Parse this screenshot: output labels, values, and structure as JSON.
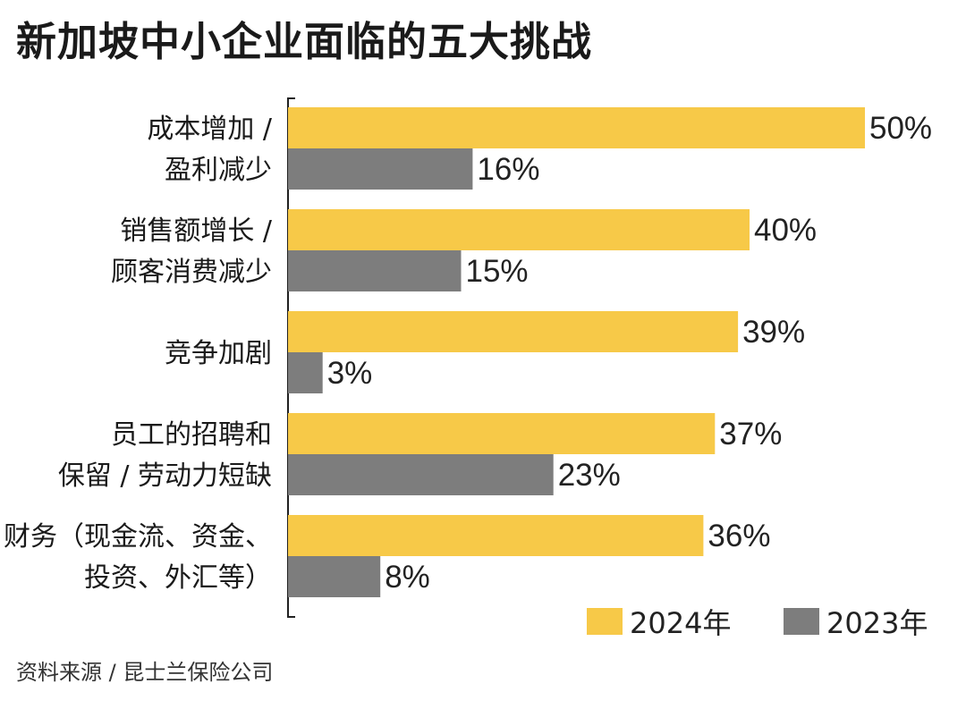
{
  "title": "新加坡中小企业面临的五大挑战",
  "source": "资料来源 / 昆士兰保险公司",
  "chart_data": {
    "type": "bar",
    "orientation": "horizontal",
    "categories": [
      [
        "成本增加 /",
        "盈利减少"
      ],
      [
        "销售额增长 /",
        "顾客消费减少"
      ],
      [
        "竞争加剧"
      ],
      [
        "员工的招聘和",
        "保留 / 劳动力短缺"
      ],
      [
        "财务（现金流、资金、",
        "投资、外汇等）"
      ]
    ],
    "series": [
      {
        "name": "2024年",
        "color": "#f7c948",
        "values": [
          50,
          40,
          39,
          37,
          36
        ]
      },
      {
        "name": "2023年",
        "color": "#7d7d7d",
        "values": [
          16,
          15,
          3,
          23,
          8
        ]
      }
    ],
    "value_suffix": "%",
    "xlim": [
      0,
      50
    ],
    "legend_position": "bottom-right",
    "grid": false
  }
}
